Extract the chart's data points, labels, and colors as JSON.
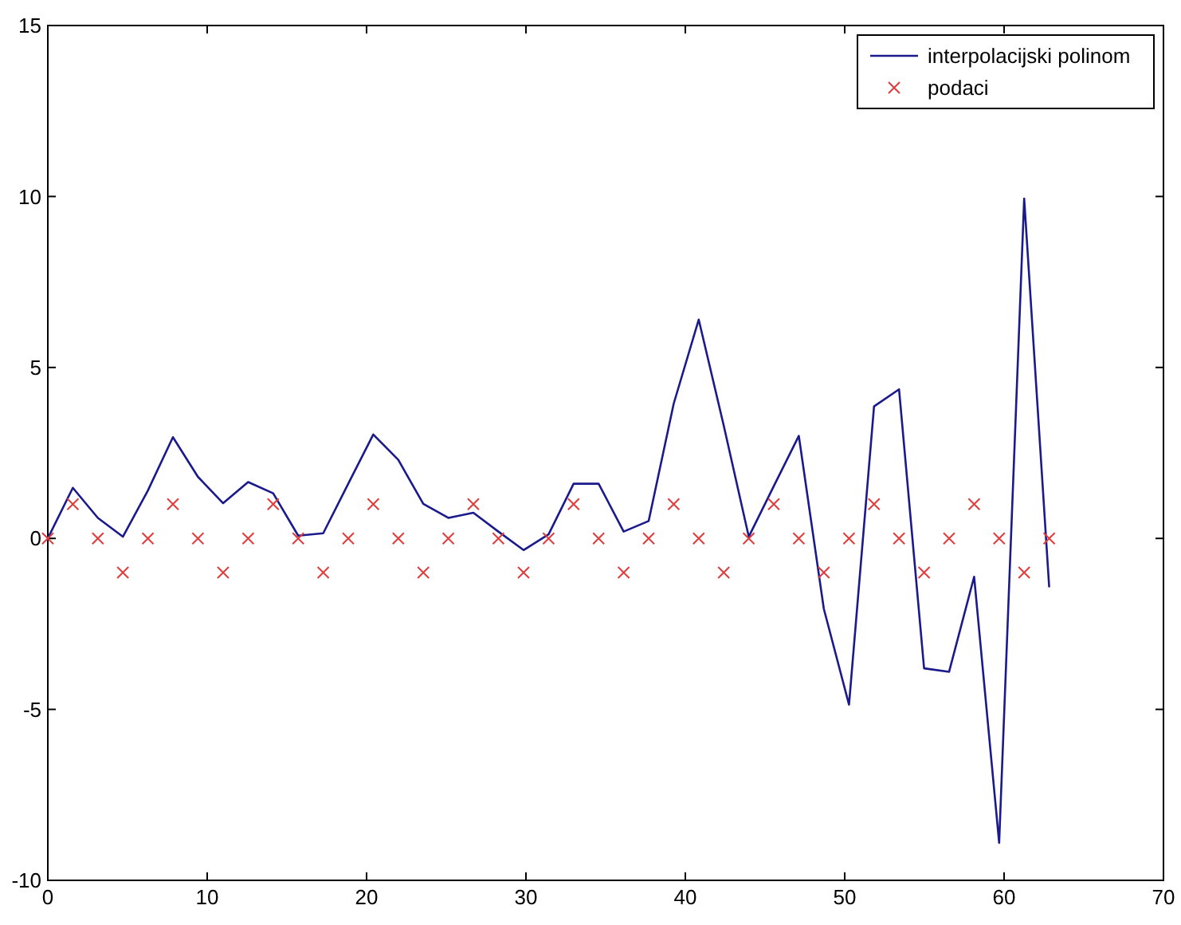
{
  "chart_data": {
    "type": "line",
    "xlim": [
      0,
      70
    ],
    "xticks": [
      0,
      10,
      20,
      30,
      40,
      50,
      60,
      70
    ],
    "ylim": [
      -10,
      15
    ],
    "yticks": [
      -10,
      -5,
      0,
      5,
      10,
      15
    ],
    "grid": false,
    "legend": "top right",
    "series": [
      {
        "name": "interpolacijski polinom",
        "color": "#1a1a8c",
        "marker": "none",
        "line_style": "solid",
        "x": [
          0,
          1.57,
          3.14,
          4.71,
          6.28,
          7.85,
          9.42,
          11.0,
          12.57,
          14.14,
          15.71,
          17.28,
          18.85,
          20.42,
          21.99,
          23.56,
          25.13,
          26.7,
          28.27,
          29.85,
          31.42,
          32.99,
          34.56,
          36.13,
          37.7,
          39.27,
          40.84,
          42.41,
          43.98,
          45.55,
          47.12,
          48.69,
          50.27,
          51.84,
          53.41,
          54.98,
          56.55,
          58.12,
          59.69,
          61.26,
          62.83
        ],
        "values": [
          0,
          1.48,
          0.6,
          0.05,
          1.4,
          2.96,
          1.8,
          1.03,
          1.65,
          1.32,
          0.08,
          0.15,
          1.6,
          3.04,
          2.3,
          1.01,
          0.6,
          0.75,
          0.2,
          -0.34,
          0.12,
          1.6,
          1.6,
          0.2,
          0.51,
          3.94,
          6.4,
          3.3,
          0.05,
          1.53,
          3.0,
          -2.06,
          -4.86,
          3.86,
          4.36,
          -3.8,
          -3.9,
          -1.12,
          -8.9,
          9.94,
          -1.43
        ]
      },
      {
        "name": "podaci",
        "type": "scatter",
        "color": "#e03c3c",
        "marker": "cross",
        "x": [
          0,
          1.57,
          3.14,
          4.71,
          6.28,
          7.85,
          9.42,
          11.0,
          12.57,
          14.14,
          15.71,
          17.28,
          18.85,
          20.42,
          21.99,
          23.56,
          25.13,
          26.7,
          28.27,
          29.85,
          31.42,
          32.99,
          34.56,
          36.13,
          37.7,
          39.27,
          40.84,
          42.41,
          43.98,
          45.55,
          47.12,
          48.69,
          50.27,
          51.84,
          53.41,
          54.98,
          56.55,
          58.12,
          59.69,
          61.26,
          62.83
        ],
        "values": [
          0,
          1,
          0,
          -1,
          0,
          1,
          0,
          -1,
          0,
          1,
          0,
          -1,
          0,
          1,
          0,
          -1,
          0,
          1,
          0,
          -1,
          0,
          1,
          0,
          -1,
          0,
          1,
          0,
          -1,
          0,
          1,
          0,
          -1,
          0,
          1,
          0,
          -1,
          0,
          1,
          0,
          -1,
          0
        ]
      }
    ]
  }
}
